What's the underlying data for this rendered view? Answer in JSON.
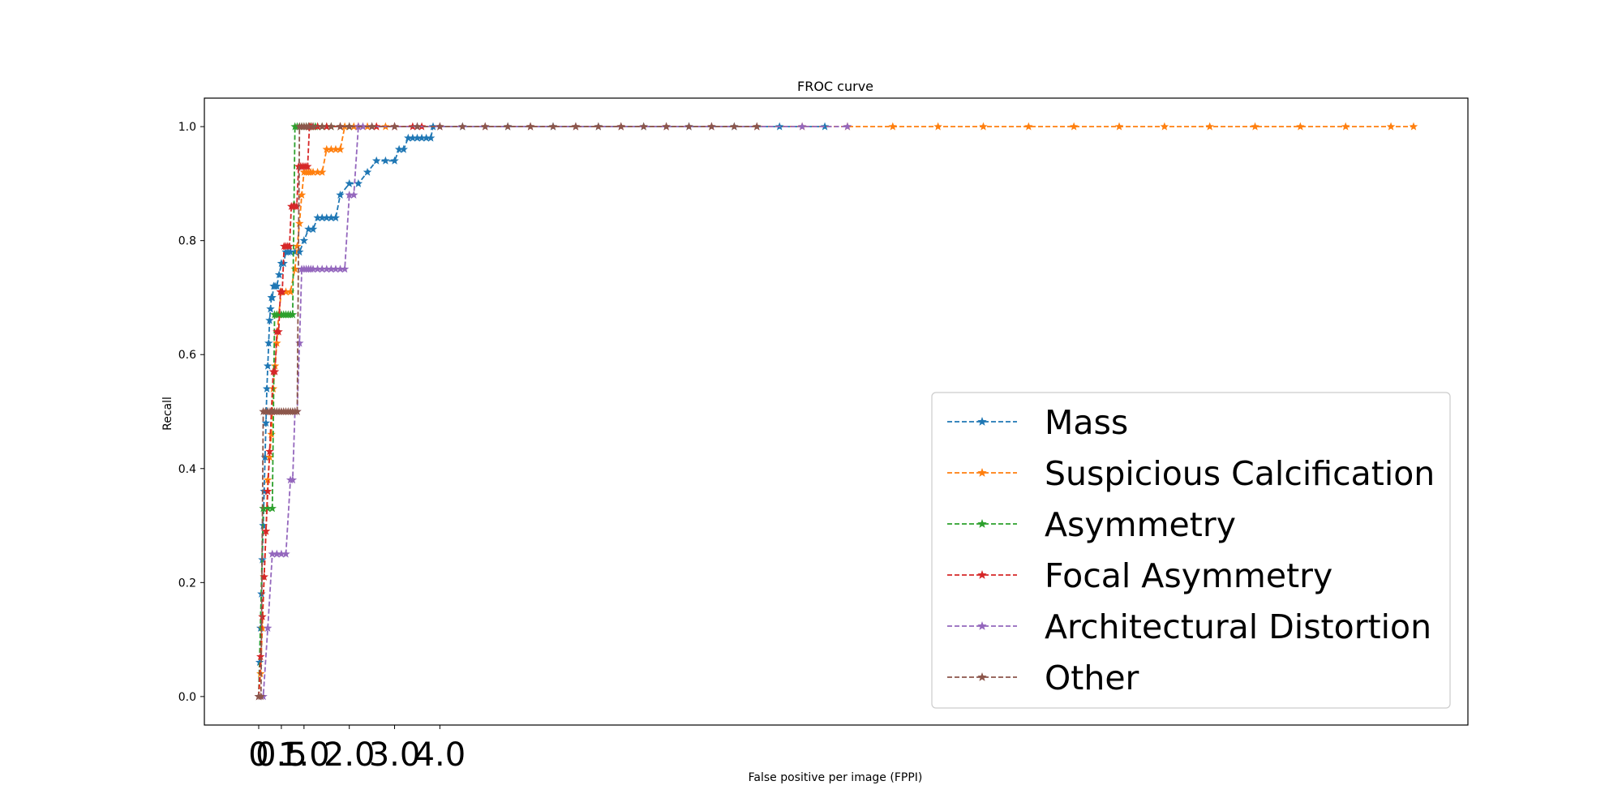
{
  "chart_data": {
    "type": "line",
    "title": "FROC curve",
    "xlabel": "False positive per image (FPPI)",
    "ylabel": "Recall",
    "xlim": [
      -1.2,
      26.7
    ],
    "ylim": [
      -0.05,
      1.05
    ],
    "x_ticks": [
      0,
      0.5,
      1.0,
      2.0,
      3.0,
      4.0
    ],
    "x_tick_labels": [
      "0",
      "0.5",
      "1.0",
      "2.0",
      "3.0",
      "4.0"
    ],
    "y_ticks": [
      0.0,
      0.2,
      0.4,
      0.6,
      0.8,
      1.0
    ],
    "y_tick_labels": [
      "0.0",
      "0.2",
      "0.4",
      "0.6",
      "0.8",
      "1.0"
    ],
    "grid": false,
    "legend_position": "lower-right",
    "marker": "star",
    "line_style": "dashed",
    "series": [
      {
        "name": "Mass",
        "color": "#1f77b4",
        "x": [
          0.0,
          0.02,
          0.04,
          0.06,
          0.08,
          0.1,
          0.12,
          0.14,
          0.16,
          0.18,
          0.2,
          0.22,
          0.24,
          0.26,
          0.28,
          0.3,
          0.33,
          0.36,
          0.4,
          0.45,
          0.5,
          0.55,
          0.6,
          0.65,
          0.7,
          0.8,
          0.9,
          1.0,
          1.1,
          1.2,
          1.3,
          1.4,
          1.5,
          1.6,
          1.7,
          1.8,
          2.0,
          2.2,
          2.4,
          2.6,
          2.8,
          3.0,
          3.1,
          3.2,
          3.3,
          3.4,
          3.5,
          3.6,
          3.7,
          3.8,
          3.85,
          4.5,
          5.5,
          6.5,
          7.5,
          8.5,
          9.5,
          10.5,
          11.5,
          12.5
        ],
        "y": [
          0.0,
          0.06,
          0.12,
          0.18,
          0.24,
          0.3,
          0.36,
          0.42,
          0.48,
          0.54,
          0.58,
          0.62,
          0.66,
          0.68,
          0.7,
          0.7,
          0.72,
          0.72,
          0.72,
          0.74,
          0.76,
          0.76,
          0.78,
          0.78,
          0.78,
          0.78,
          0.78,
          0.8,
          0.82,
          0.82,
          0.84,
          0.84,
          0.84,
          0.84,
          0.84,
          0.88,
          0.9,
          0.9,
          0.92,
          0.94,
          0.94,
          0.94,
          0.96,
          0.96,
          0.98,
          0.98,
          0.98,
          0.98,
          0.98,
          0.98,
          1.0,
          1.0,
          1.0,
          1.0,
          1.0,
          1.0,
          1.0,
          1.0,
          1.0,
          1.0
        ]
      },
      {
        "name": "Suspicious Calcification",
        "color": "#ff7f0e",
        "x": [
          0.0,
          0.04,
          0.08,
          0.12,
          0.16,
          0.2,
          0.24,
          0.28,
          0.32,
          0.36,
          0.4,
          0.44,
          0.5,
          0.6,
          0.7,
          0.8,
          0.85,
          0.9,
          0.95,
          1.0,
          1.05,
          1.1,
          1.15,
          1.2,
          1.3,
          1.4,
          1.5,
          1.6,
          1.7,
          1.8,
          1.9,
          2.0,
          2.1,
          2.2,
          2.4,
          2.6,
          2.8,
          3.0,
          4.0,
          5.0,
          6.0,
          7.0,
          8.0,
          9.0,
          10.0,
          11.0,
          12.0,
          13.0,
          14.0,
          15.0,
          16.0,
          17.0,
          18.0,
          19.0,
          20.0,
          21.0,
          22.0,
          23.0,
          24.0,
          25.0,
          25.5
        ],
        "y": [
          0.0,
          0.04,
          0.12,
          0.21,
          0.29,
          0.38,
          0.42,
          0.46,
          0.54,
          0.58,
          0.62,
          0.67,
          0.71,
          0.71,
          0.71,
          0.75,
          0.79,
          0.83,
          0.88,
          0.92,
          0.92,
          0.92,
          0.92,
          0.92,
          0.92,
          0.92,
          0.96,
          0.96,
          0.96,
          0.96,
          1.0,
          1.0,
          1.0,
          1.0,
          1.0,
          1.0,
          1.0,
          1.0,
          1.0,
          1.0,
          1.0,
          1.0,
          1.0,
          1.0,
          1.0,
          1.0,
          1.0,
          1.0,
          1.0,
          1.0,
          1.0,
          1.0,
          1.0,
          1.0,
          1.0,
          1.0,
          1.0,
          1.0,
          1.0,
          1.0,
          1.0
        ]
      },
      {
        "name": "Asymmetry",
        "color": "#2ca02c",
        "x": [
          0.0,
          0.1,
          0.2,
          0.3,
          0.35,
          0.4,
          0.45,
          0.5,
          0.55,
          0.6,
          0.65,
          0.7,
          0.75,
          0.8,
          0.85,
          0.9,
          0.95,
          1.0,
          1.05,
          1.1,
          1.15,
          1.2,
          1.25,
          1.3,
          1.4,
          1.5,
          1.6,
          1.8,
          2.0
        ],
        "y": [
          0.0,
          0.33,
          0.33,
          0.33,
          0.67,
          0.67,
          0.67,
          0.67,
          0.67,
          0.67,
          0.67,
          0.67,
          0.67,
          1.0,
          1.0,
          1.0,
          1.0,
          1.0,
          1.0,
          1.0,
          1.0,
          1.0,
          1.0,
          1.0,
          1.0,
          1.0,
          1.0,
          1.0,
          1.0
        ]
      },
      {
        "name": "Focal Asymmetry",
        "color": "#d62728",
        "x": [
          0.0,
          0.04,
          0.08,
          0.12,
          0.16,
          0.2,
          0.24,
          0.28,
          0.32,
          0.36,
          0.4,
          0.44,
          0.48,
          0.52,
          0.56,
          0.6,
          0.64,
          0.68,
          0.72,
          0.76,
          0.8,
          0.84,
          0.88,
          0.92,
          0.96,
          1.0,
          1.04,
          1.08,
          1.12,
          1.16,
          1.2,
          1.3,
          1.5,
          1.8,
          2.2,
          2.6,
          3.0,
          3.4,
          3.6
        ],
        "y": [
          0.0,
          0.07,
          0.14,
          0.21,
          0.29,
          0.36,
          0.43,
          0.5,
          0.57,
          0.57,
          0.64,
          0.64,
          0.71,
          0.71,
          0.79,
          0.79,
          0.79,
          0.79,
          0.86,
          0.86,
          0.86,
          0.86,
          0.93,
          0.93,
          0.93,
          0.93,
          0.93,
          0.93,
          1.0,
          1.0,
          1.0,
          1.0,
          1.0,
          1.0,
          1.0,
          1.0,
          1.0,
          1.0,
          1.0
        ]
      },
      {
        "name": "Architectural Distortion",
        "color": "#9467bd",
        "x": [
          0.0,
          0.1,
          0.2,
          0.3,
          0.4,
          0.5,
          0.6,
          0.7,
          0.75,
          0.8,
          0.85,
          0.9,
          0.95,
          1.0,
          1.05,
          1.1,
          1.15,
          1.2,
          1.3,
          1.4,
          1.5,
          1.6,
          1.7,
          1.8,
          1.9,
          2.0,
          2.1,
          2.2,
          2.3,
          2.5,
          3.0,
          3.5,
          4.0,
          5.0,
          6.0,
          7.0,
          8.0,
          9.0,
          10.0,
          11.0,
          12.0,
          13.0
        ],
        "y": [
          0.0,
          0.0,
          0.12,
          0.25,
          0.25,
          0.25,
          0.25,
          0.38,
          0.38,
          0.5,
          0.5,
          0.62,
          0.75,
          0.75,
          0.75,
          0.75,
          0.75,
          0.75,
          0.75,
          0.75,
          0.75,
          0.75,
          0.75,
          0.75,
          0.75,
          0.88,
          0.88,
          1.0,
          1.0,
          1.0,
          1.0,
          1.0,
          1.0,
          1.0,
          1.0,
          1.0,
          1.0,
          1.0,
          1.0,
          1.0,
          1.0,
          1.0
        ]
      },
      {
        "name": "Other",
        "color": "#8c564b",
        "x": [
          0.0,
          0.05,
          0.1,
          0.15,
          0.2,
          0.25,
          0.3,
          0.35,
          0.4,
          0.45,
          0.5,
          0.55,
          0.6,
          0.65,
          0.7,
          0.75,
          0.8,
          0.85,
          0.9,
          0.95,
          1.0,
          1.05,
          1.1,
          1.2,
          1.4,
          1.6,
          1.8,
          2.0,
          2.5,
          3.0,
          3.5,
          4.0,
          4.5,
          5.0,
          5.5,
          6.0,
          6.5,
          7.0,
          7.5,
          8.0,
          8.5,
          9.0,
          9.5,
          10.0,
          10.5,
          11.0
        ],
        "y": [
          0.0,
          0.0,
          0.5,
          0.5,
          0.5,
          0.5,
          0.5,
          0.5,
          0.5,
          0.5,
          0.5,
          0.5,
          0.5,
          0.5,
          0.5,
          0.5,
          0.5,
          0.5,
          1.0,
          1.0,
          1.0,
          1.0,
          1.0,
          1.0,
          1.0,
          1.0,
          1.0,
          1.0,
          1.0,
          1.0,
          1.0,
          1.0,
          1.0,
          1.0,
          1.0,
          1.0,
          1.0,
          1.0,
          1.0,
          1.0,
          1.0,
          1.0,
          1.0,
          1.0,
          1.0,
          1.0
        ]
      }
    ]
  }
}
